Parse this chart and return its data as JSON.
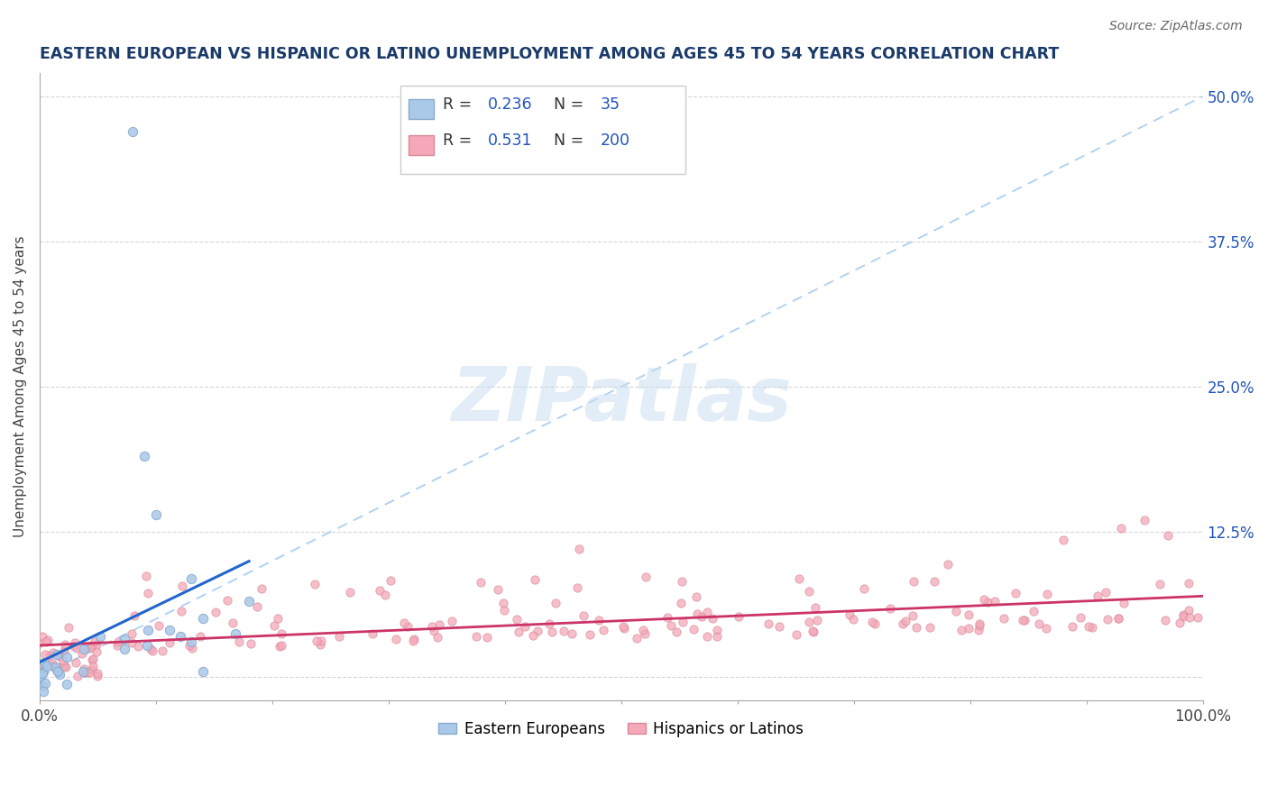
{
  "title": "EASTERN EUROPEAN VS HISPANIC OR LATINO UNEMPLOYMENT AMONG AGES 45 TO 54 YEARS CORRELATION CHART",
  "source": "Source: ZipAtlas.com",
  "ylabel": "Unemployment Among Ages 45 to 54 years",
  "xlim": [
    0,
    1.0
  ],
  "ylim": [
    -0.02,
    0.52
  ],
  "yticks": [
    0.0,
    0.125,
    0.25,
    0.375,
    0.5
  ],
  "ytick_labels": [
    "",
    "12.5%",
    "25.0%",
    "37.5%",
    "50.0%"
  ],
  "ee_color": "#aac8e8",
  "ee_edge": "#88aacc",
  "hl_color": "#f4a8b8",
  "hl_edge": "#d88898",
  "ee_line_color": "#2266cc",
  "hl_line_color": "#cc3366",
  "ref_line_color": "#aaccee",
  "legend_ee_label": "Eastern Europeans",
  "legend_hl_label": "Hispanics or Latinos",
  "R_ee": 0.236,
  "N_ee": 35,
  "R_hl": 0.531,
  "N_hl": 200,
  "background_color": "#ffffff",
  "watermark": "ZIPatlas",
  "title_color": "#1a3a6a",
  "source_color": "#666666",
  "legend_text_color": "#2255bb"
}
